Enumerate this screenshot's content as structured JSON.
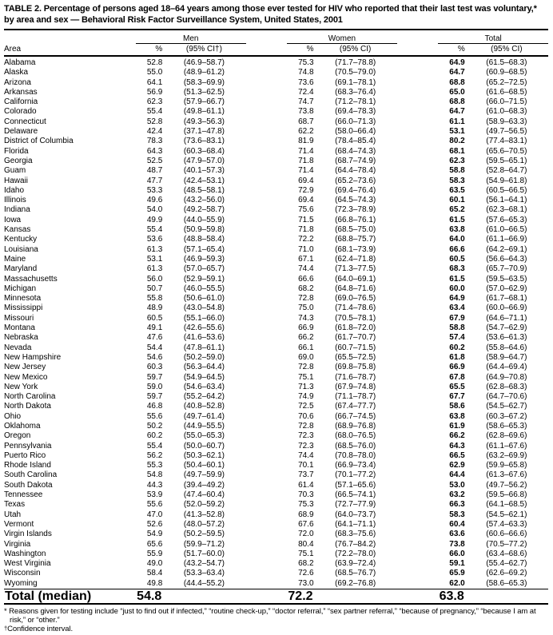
{
  "title": "TABLE 2. Percentage of persons aged 18–64 years among those ever tested for HIV who reported that their last test was voluntary,* by area and sex — Behavioral Risk Factor Surveillance System, United States, 2001",
  "table": {
    "area_header": "Area",
    "groups": [
      {
        "label": "Men",
        "pct_header": "%",
        "ci_header": "(95% CI†)"
      },
      {
        "label": "Women",
        "pct_header": "%",
        "ci_header": "(95% CI)"
      },
      {
        "label": "Total",
        "pct_header": "%",
        "ci_header": "(95% CI)"
      }
    ],
    "rows": [
      {
        "area": "Alabama",
        "men_pct": "52.8",
        "men_ci": "(46.9–58.7)",
        "women_pct": "75.3",
        "women_ci": "(71.7–78.8)",
        "total_pct": "64.9",
        "total_ci": "(61.5–68.3)"
      },
      {
        "area": "Alaska",
        "men_pct": "55.0",
        "men_ci": "(48.9–61.2)",
        "women_pct": "74.8",
        "women_ci": "(70.5–79.0)",
        "total_pct": "64.7",
        "total_ci": "(60.9–68.5)"
      },
      {
        "area": "Arizona",
        "men_pct": "64.1",
        "men_ci": "(58.3–69.9)",
        "women_pct": "73.6",
        "women_ci": "(69.1–78.1)",
        "total_pct": "68.8",
        "total_ci": "(65.2–72.5)"
      },
      {
        "area": "Arkansas",
        "men_pct": "56.9",
        "men_ci": "(51.3–62.5)",
        "women_pct": "72.4",
        "women_ci": "(68.3–76.4)",
        "total_pct": "65.0",
        "total_ci": "(61.6–68.5)"
      },
      {
        "area": "California",
        "men_pct": "62.3",
        "men_ci": "(57.9–66.7)",
        "women_pct": "74.7",
        "women_ci": "(71.2–78.1)",
        "total_pct": "68.8",
        "total_ci": "(66.0–71.5)"
      },
      {
        "area": "Colorado",
        "men_pct": "55.4",
        "men_ci": "(49.8–61.1)",
        "women_pct": "73.8",
        "women_ci": "(69.4–78.3)",
        "total_pct": "64.7",
        "total_ci": "(61.0–68.3)"
      },
      {
        "area": "Connecticut",
        "men_pct": "52.8",
        "men_ci": "(49.3–56.3)",
        "women_pct": "68.7",
        "women_ci": "(66.0–71.3)",
        "total_pct": "61.1",
        "total_ci": "(58.9–63.3)"
      },
      {
        "area": "Delaware",
        "men_pct": "42.4",
        "men_ci": "(37.1–47.8)",
        "women_pct": "62.2",
        "women_ci": "(58.0–66.4)",
        "total_pct": "53.1",
        "total_ci": "(49.7–56.5)"
      },
      {
        "area": "District of Columbia",
        "men_pct": "78.3",
        "men_ci": "(73.6–83.1)",
        "women_pct": "81.9",
        "women_ci": "(78.4–85.4)",
        "total_pct": "80.2",
        "total_ci": "(77.4–83.1)"
      },
      {
        "area": "Florida",
        "men_pct": "64.3",
        "men_ci": "(60.3–68.4)",
        "women_pct": "71.4",
        "women_ci": "(68.4–74.3)",
        "total_pct": "68.1",
        "total_ci": "(65.6–70.5)"
      },
      {
        "area": "Georgia",
        "men_pct": "52.5",
        "men_ci": "(47.9–57.0)",
        "women_pct": "71.8",
        "women_ci": "(68.7–74.9)",
        "total_pct": "62.3",
        "total_ci": "(59.5–65.1)"
      },
      {
        "area": "Guam",
        "men_pct": "48.7",
        "men_ci": "(40.1–57.3)",
        "women_pct": "71.4",
        "women_ci": "(64.4–78.4)",
        "total_pct": "58.8",
        "total_ci": "(52.8–64.7)"
      },
      {
        "area": "Hawaii",
        "men_pct": "47.7",
        "men_ci": "(42.4–53.1)",
        "women_pct": "69.4",
        "women_ci": "(65.2–73.6)",
        "total_pct": "58.3",
        "total_ci": "(54.9–61.8)"
      },
      {
        "area": "Idaho",
        "men_pct": "53.3",
        "men_ci": "(48.5–58.1)",
        "women_pct": "72.9",
        "women_ci": "(69.4–76.4)",
        "total_pct": "63.5",
        "total_ci": "(60.5–66.5)"
      },
      {
        "area": "Illinois",
        "men_pct": "49.6",
        "men_ci": "(43.2–56.0)",
        "women_pct": "69.4",
        "women_ci": "(64.5–74.3)",
        "total_pct": "60.1",
        "total_ci": "(56.1–64.1)"
      },
      {
        "area": "Indiana",
        "men_pct": "54.0",
        "men_ci": "(49.2–58.7)",
        "women_pct": "75.6",
        "women_ci": "(72.3–78.9)",
        "total_pct": "65.2",
        "total_ci": "(62.3–68.1)"
      },
      {
        "area": "Iowa",
        "men_pct": "49.9",
        "men_ci": "(44.0–55.9)",
        "women_pct": "71.5",
        "women_ci": "(66.8–76.1)",
        "total_pct": "61.5",
        "total_ci": "(57.6–65.3)"
      },
      {
        "area": "Kansas",
        "men_pct": "55.4",
        "men_ci": "(50.9–59.8)",
        "women_pct": "71.8",
        "women_ci": "(68.5–75.0)",
        "total_pct": "63.8",
        "total_ci": "(61.0–66.5)"
      },
      {
        "area": "Kentucky",
        "men_pct": "53.6",
        "men_ci": "(48.8–58.4)",
        "women_pct": "72.2",
        "women_ci": "(68.8–75.7)",
        "total_pct": "64.0",
        "total_ci": "(61.1–66.9)"
      },
      {
        "area": "Louisiana",
        "men_pct": "61.3",
        "men_ci": "(57.1–65.4)",
        "women_pct": "71.0",
        "women_ci": "(68.1–73.9)",
        "total_pct": "66.6",
        "total_ci": "(64.2–69.1)"
      },
      {
        "area": "Maine",
        "men_pct": "53.1",
        "men_ci": "(46.9–59.3)",
        "women_pct": "67.1",
        "women_ci": "(62.4–71.8)",
        "total_pct": "60.5",
        "total_ci": "(56.6–64.3)"
      },
      {
        "area": "Maryland",
        "men_pct": "61.3",
        "men_ci": "(57.0–65.7)",
        "women_pct": "74.4",
        "women_ci": "(71.3–77.5)",
        "total_pct": "68.3",
        "total_ci": "(65.7–70.9)"
      },
      {
        "area": "Massachusetts",
        "men_pct": "56.0",
        "men_ci": "(52.9–59.1)",
        "women_pct": "66.6",
        "women_ci": "(64.0–69.1)",
        "total_pct": "61.5",
        "total_ci": "(59.5–63.5)"
      },
      {
        "area": "Michigan",
        "men_pct": "50.7",
        "men_ci": "(46.0–55.5)",
        "women_pct": "68.2",
        "women_ci": "(64.8–71.6)",
        "total_pct": "60.0",
        "total_ci": "(57.0–62.9)"
      },
      {
        "area": "Minnesota",
        "men_pct": "55.8",
        "men_ci": "(50.6–61.0)",
        "women_pct": "72.8",
        "women_ci": "(69.0–76.5)",
        "total_pct": "64.9",
        "total_ci": "(61.7–68.1)"
      },
      {
        "area": "Mississippi",
        "men_pct": "48.9",
        "men_ci": "(43.0–54.8)",
        "women_pct": "75.0",
        "women_ci": "(71.4–78.6)",
        "total_pct": "63.4",
        "total_ci": "(60.0–66.9)"
      },
      {
        "area": "Missouri",
        "men_pct": "60.5",
        "men_ci": "(55.1–66.0)",
        "women_pct": "74.3",
        "women_ci": "(70.5–78.1)",
        "total_pct": "67.9",
        "total_ci": "(64.6–71.1)"
      },
      {
        "area": "Montana",
        "men_pct": "49.1",
        "men_ci": "(42.6–55.6)",
        "women_pct": "66.9",
        "women_ci": "(61.8–72.0)",
        "total_pct": "58.8",
        "total_ci": "(54.7–62.9)"
      },
      {
        "area": "Nebraska",
        "men_pct": "47.6",
        "men_ci": "(41.6–53.6)",
        "women_pct": "66.2",
        "women_ci": "(61.7–70.7)",
        "total_pct": "57.4",
        "total_ci": "(53.6–61.3)"
      },
      {
        "area": "Nevada",
        "men_pct": "54.4",
        "men_ci": "(47.8–61.1)",
        "women_pct": "66.1",
        "women_ci": "(60.7–71.5)",
        "total_pct": "60.2",
        "total_ci": "(55.8–64.6)"
      },
      {
        "area": "New Hampshire",
        "men_pct": "54.6",
        "men_ci": "(50.2–59.0)",
        "women_pct": "69.0",
        "women_ci": "(65.5–72.5)",
        "total_pct": "61.8",
        "total_ci": "(58.9–64.7)"
      },
      {
        "area": "New Jersey",
        "men_pct": "60.3",
        "men_ci": "(56.3–64.4)",
        "women_pct": "72.8",
        "women_ci": "(69.8–75.8)",
        "total_pct": "66.9",
        "total_ci": "(64.4–69.4)"
      },
      {
        "area": "New Mexico",
        "men_pct": "59.7",
        "men_ci": "(54.9–64.5)",
        "women_pct": "75.1",
        "women_ci": "(71.6–78.7)",
        "total_pct": "67.8",
        "total_ci": "(64.9–70.8)"
      },
      {
        "area": "New York",
        "men_pct": "59.0",
        "men_ci": "(54.6–63.4)",
        "women_pct": "71.3",
        "women_ci": "(67.9–74.8)",
        "total_pct": "65.5",
        "total_ci": "(62.8–68.3)"
      },
      {
        "area": "North Carolina",
        "men_pct": "59.7",
        "men_ci": "(55.2–64.2)",
        "women_pct": "74.9",
        "women_ci": "(71.1–78.7)",
        "total_pct": "67.7",
        "total_ci": "(64.7–70.6)"
      },
      {
        "area": "North Dakota",
        "men_pct": "46.8",
        "men_ci": "(40.8–52.8)",
        "women_pct": "72.5",
        "women_ci": "(67.4–77.7)",
        "total_pct": "58.6",
        "total_ci": "(54.5–62.7)"
      },
      {
        "area": "Ohio",
        "men_pct": "55.6",
        "men_ci": "(49.7–61.4)",
        "women_pct": "70.6",
        "women_ci": "(66.7–74.5)",
        "total_pct": "63.8",
        "total_ci": "(60.3–67.2)"
      },
      {
        "area": "Oklahoma",
        "men_pct": "50.2",
        "men_ci": "(44.9–55.5)",
        "women_pct": "72.8",
        "women_ci": "(68.9–76.8)",
        "total_pct": "61.9",
        "total_ci": "(58.6–65.3)"
      },
      {
        "area": "Oregon",
        "men_pct": "60.2",
        "men_ci": "(55.0–65.3)",
        "women_pct": "72.3",
        "women_ci": "(68.0–76.5)",
        "total_pct": "66.2",
        "total_ci": "(62.8–69.6)"
      },
      {
        "area": "Pennsylvania",
        "men_pct": "55.4",
        "men_ci": "(50.0–60.7)",
        "women_pct": "72.3",
        "women_ci": "(68.5–76.0)",
        "total_pct": "64.3",
        "total_ci": "(61.1–67.6)"
      },
      {
        "area": "Puerto Rico",
        "men_pct": "56.2",
        "men_ci": "(50.3–62.1)",
        "women_pct": "74.4",
        "women_ci": "(70.8–78.0)",
        "total_pct": "66.5",
        "total_ci": "(63.2–69.9)"
      },
      {
        "area": "Rhode Island",
        "men_pct": "55.3",
        "men_ci": "(50.4–60.1)",
        "women_pct": "70.1",
        "women_ci": "(66.9–73.4)",
        "total_pct": "62.9",
        "total_ci": "(59.9–65.8)"
      },
      {
        "area": "South Carolina",
        "men_pct": "54.8",
        "men_ci": "(49.7–59.9)",
        "women_pct": "73.7",
        "women_ci": "(70.1–77.2)",
        "total_pct": "64.4",
        "total_ci": "(61.3–67.6)"
      },
      {
        "area": "South Dakota",
        "men_pct": "44.3",
        "men_ci": "(39.4–49.2)",
        "women_pct": "61.4",
        "women_ci": "(57.1–65.6)",
        "total_pct": "53.0",
        "total_ci": "(49.7–56.2)"
      },
      {
        "area": "Tennessee",
        "men_pct": "53.9",
        "men_ci": "(47.4–60.4)",
        "women_pct": "70.3",
        "women_ci": "(66.5–74.1)",
        "total_pct": "63.2",
        "total_ci": "(59.5–66.8)"
      },
      {
        "area": "Texas",
        "men_pct": "55.6",
        "men_ci": "(52.0–59.2)",
        "women_pct": "75.3",
        "women_ci": "(72.7–77.9)",
        "total_pct": "66.3",
        "total_ci": "(64.1–68.5)"
      },
      {
        "area": "Utah",
        "men_pct": "47.0",
        "men_ci": "(41.3–52.8)",
        "women_pct": "68.9",
        "women_ci": "(64.0–73.7)",
        "total_pct": "58.3",
        "total_ci": "(54.5–62.1)"
      },
      {
        "area": "Vermont",
        "men_pct": "52.6",
        "men_ci": "(48.0–57.2)",
        "women_pct": "67.6",
        "women_ci": "(64.1–71.1)",
        "total_pct": "60.4",
        "total_ci": "(57.4–63.3)"
      },
      {
        "area": "Virgin Islands",
        "men_pct": "54.9",
        "men_ci": "(50.2–59.5)",
        "women_pct": "72.0",
        "women_ci": "(68.3–75.6)",
        "total_pct": "63.6",
        "total_ci": "(60.6–66.6)"
      },
      {
        "area": "Virginia",
        "men_pct": "65.6",
        "men_ci": "(59.9–71.2)",
        "women_pct": "80.4",
        "women_ci": "(76.7–84.2)",
        "total_pct": "73.8",
        "total_ci": "(70.5–77.2)"
      },
      {
        "area": "Washington",
        "men_pct": "55.9",
        "men_ci": "(51.7–60.0)",
        "women_pct": "75.1",
        "women_ci": "(72.2–78.0)",
        "total_pct": "66.0",
        "total_ci": "(63.4–68.6)"
      },
      {
        "area": "West Virginia",
        "men_pct": "49.0",
        "men_ci": "(43.2–54.7)",
        "women_pct": "68.2",
        "women_ci": "(63.9–72.4)",
        "total_pct": "59.1",
        "total_ci": "(55.4–62.7)"
      },
      {
        "area": "Wisconsin",
        "men_pct": "58.4",
        "men_ci": "(53.3–63.4)",
        "women_pct": "72.6",
        "women_ci": "(68.5–76.7)",
        "total_pct": "65.9",
        "total_ci": "(62.6–69.2)"
      },
      {
        "area": "Wyoming",
        "men_pct": "49.8",
        "men_ci": "(44.4–55.2)",
        "women_pct": "73.0",
        "women_ci": "(69.2–76.8)",
        "total_pct": "62.0",
        "total_ci": "(58.6–65.3)"
      }
    ],
    "total_row": {
      "area": "Total (median)",
      "men_pct": "54.8",
      "men_ci": "",
      "women_pct": "72.2",
      "women_ci": "",
      "total_pct": "63.8",
      "total_ci": ""
    }
  },
  "footnotes": [
    {
      "marker": "*",
      "text": "Reasons given for testing include “just to find out if infected,” “routine check-up,” “doctor referral,” “sex partner referral,” “because of pregnancy,” “because I am at risk,” or “other.”"
    },
    {
      "marker": "†",
      "text": "Confidence interval."
    }
  ]
}
